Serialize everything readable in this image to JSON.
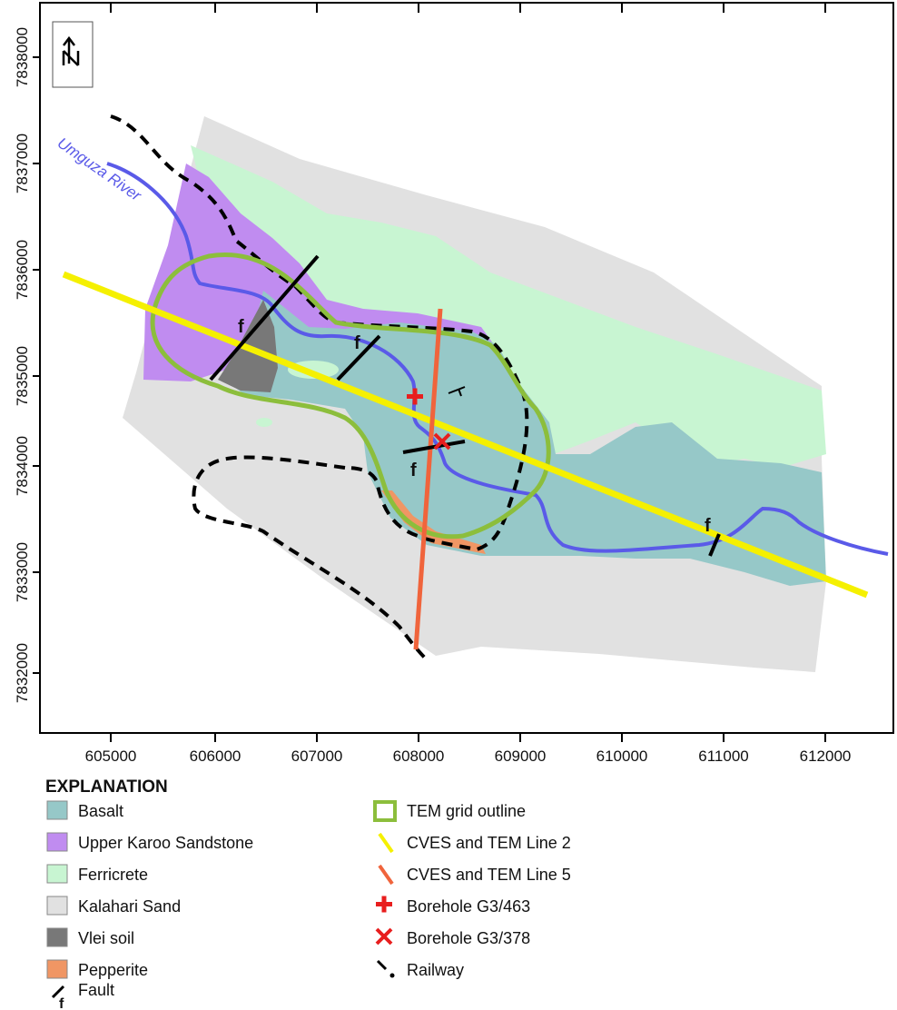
{
  "map": {
    "x_ticks": [
      "605000",
      "606000",
      "607000",
      "608000",
      "609000",
      "610000",
      "611000",
      "612000"
    ],
    "y_ticks": [
      "7838000",
      "7837000",
      "7836000",
      "7835000",
      "7834000",
      "7833000",
      "7832000"
    ],
    "river_label": "Umguza River",
    "fault_label": "f"
  },
  "legend": {
    "title": "EXPLANATION",
    "items": [
      {
        "label": "Basalt",
        "color": "#96c8c8"
      },
      {
        "label": "Upper Karoo Sandstone",
        "color": "#c08cf0"
      },
      {
        "label": "Ferricrete",
        "color": "#c8f5d2"
      },
      {
        "label": "Kalahari Sand",
        "color": "#e1e1e1"
      },
      {
        "label": "Vlei soil",
        "color": "#787878"
      },
      {
        "label": "Pepperite",
        "color": "#f09664"
      },
      {
        "label": "Fault",
        "color": "#000000"
      },
      {
        "label": "TEM grid outline",
        "color": "#8cbe3c"
      },
      {
        "label": "CVES and TEM Line 2",
        "color": "#f5f000"
      },
      {
        "label": "CVES and TEM Line 5",
        "color": "#f0643c"
      },
      {
        "label": "Borehole G3/463",
        "color": "#e81e1e"
      },
      {
        "label": "Borehole G3/378",
        "color": "#e81e1e"
      },
      {
        "label": "Railway",
        "color": "#000000"
      }
    ]
  }
}
